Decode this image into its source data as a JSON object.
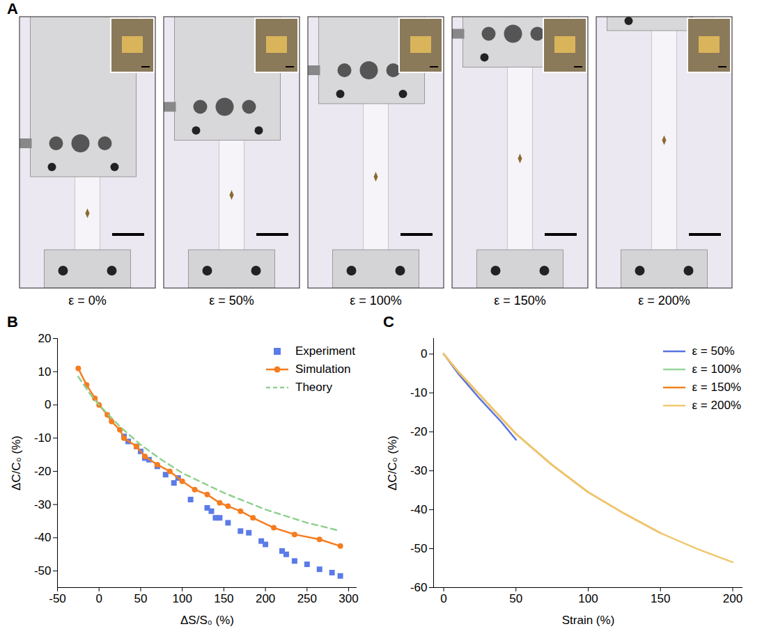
{
  "panel_A": {
    "panel": "A",
    "strains": [
      0,
      50,
      100,
      150,
      200
    ],
    "captions": [
      "ε = 0%",
      "ε = 50%",
      "ε = 100%",
      "ε = 150%",
      "ε = 200%"
    ]
  },
  "chart_data": [
    {
      "panel": "B",
      "type": "line",
      "xlabel": "ΔS/S₀ (%)",
      "ylabel": "ΔC/C₀ (%)",
      "xlim": [
        -50,
        310
      ],
      "xticks": [
        -50,
        0,
        50,
        100,
        150,
        200,
        250,
        300
      ],
      "ylim": [
        -55,
        20
      ],
      "yticks": [
        20,
        10,
        0,
        -10,
        -20,
        -30,
        -40,
        -50
      ],
      "legend": "upper right",
      "series": [
        {
          "name": "Experiment",
          "type": "scatter",
          "marker": "square",
          "color": "#5b7be8",
          "x": [
            30,
            35,
            45,
            50,
            55,
            60,
            70,
            80,
            90,
            95,
            110,
            130,
            135,
            140,
            145,
            155,
            170,
            180,
            195,
            200,
            220,
            225,
            235,
            250,
            265,
            280,
            290
          ],
          "values": [
            -9.5,
            -11,
            -12.5,
            -14,
            -16,
            -16.5,
            -18.5,
            -21,
            -23.5,
            -22,
            -28.5,
            -31,
            -32,
            -34,
            -34,
            -35.5,
            -38,
            -38.5,
            -41,
            -42,
            -44,
            -45,
            -47,
            -48,
            -49.5,
            -50.5,
            -51.5
          ]
        },
        {
          "name": "Simulation",
          "type": "line",
          "marker": "circle",
          "color": "#f57c1f",
          "x": [
            -25,
            -15,
            -5,
            0,
            10,
            15,
            25,
            30,
            45,
            55,
            70,
            85,
            100,
            115,
            130,
            145,
            155,
            170,
            185,
            210,
            235,
            265,
            290
          ],
          "values": [
            11,
            6,
            2,
            0,
            -3,
            -5,
            -7.5,
            -10,
            -12.5,
            -15.5,
            -18,
            -20,
            -23,
            -25.5,
            -27,
            -29.5,
            -30.5,
            -32,
            -34,
            -37,
            -39,
            -40.5,
            -42.5
          ]
        },
        {
          "name": "Theory",
          "type": "line",
          "line_style": "dashed",
          "color": "#8fd18f",
          "x": [
            -25,
            -10,
            0,
            25,
            50,
            75,
            100,
            125,
            150,
            175,
            200,
            225,
            250,
            275,
            290
          ],
          "values": [
            8.5,
            3,
            0,
            -6.5,
            -12,
            -16.5,
            -20.5,
            -23.5,
            -26.5,
            -29,
            -31.5,
            -33.5,
            -35.5,
            -37,
            -38
          ]
        }
      ]
    },
    {
      "panel": "C",
      "type": "line",
      "xlabel": "Strain (%)",
      "ylabel": "ΔC/C₀ (%)",
      "xlim": [
        -7,
        207
      ],
      "xticks": [
        0,
        50,
        100,
        150,
        200
      ],
      "ylim": [
        -60,
        4
      ],
      "yticks": [
        0,
        -10,
        -20,
        -30,
        -40,
        -50,
        -60
      ],
      "legend": "upper right",
      "series": [
        {
          "name": "ε = 50%",
          "color": "#5a72e0",
          "x": [
            0,
            10,
            25,
            40,
            50
          ],
          "values": [
            0,
            -5,
            -11.5,
            -17.5,
            -22
          ]
        },
        {
          "name": "ε = 100%",
          "color": "#98d49a",
          "x": [
            0,
            10,
            25,
            50,
            75,
            100
          ],
          "values": [
            0,
            -4.5,
            -10.5,
            -20.5,
            -28.5,
            -35.5
          ]
        },
        {
          "name": "ε = 150%",
          "color": "#f5801e",
          "x": [
            0,
            10,
            25,
            50,
            75,
            100,
            125,
            150
          ],
          "values": [
            0,
            -4.5,
            -10.5,
            -20.5,
            -28.5,
            -35.5,
            -41,
            -46
          ]
        },
        {
          "name": "ε = 200%",
          "color": "#f0c86e",
          "x": [
            0,
            10,
            25,
            50,
            75,
            100,
            125,
            150,
            175,
            200
          ],
          "values": [
            0,
            -4.5,
            -10.5,
            -20.5,
            -28.5,
            -35.5,
            -41,
            -46,
            -50,
            -53.5
          ]
        }
      ]
    }
  ]
}
